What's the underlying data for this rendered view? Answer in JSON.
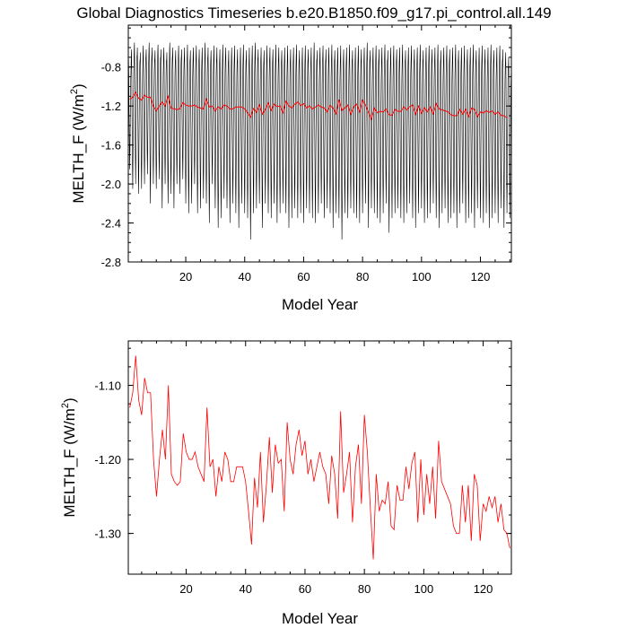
{
  "title": "Global Diagnostics Timeseries b.e20.B1850.f09_g17.pi_control.all.149",
  "chart_data": [
    {
      "type": "line",
      "xlabel": "Model Year",
      "ylabel_main": "MELTH_F (W/m",
      "ylabel_sup": "2",
      "ylabel_close": ")",
      "xlim": [
        0.5,
        130.5
      ],
      "ylim": [
        -2.8,
        -0.37
      ],
      "xticks": [
        20,
        40,
        60,
        80,
        100,
        120
      ],
      "xticklabels": [
        "20",
        "40",
        "60",
        "80",
        "100",
        "120"
      ],
      "yticks": [
        -2.8,
        -2.4,
        -2.0,
        -1.6,
        -1.2,
        -0.8
      ],
      "yticklabels": [
        "-2.8",
        "-2.4",
        "-2.0",
        "-1.6",
        "-1.2",
        "-0.8"
      ],
      "series": [
        {
          "kind": "monthly",
          "color": "#000000",
          "years": 130,
          "summer_min_by_year": [
            -1.85,
            -2.05,
            -2.0,
            -2.1,
            -2.05,
            -2.0,
            -1.9,
            -2.2,
            -2.0,
            -2.05,
            -1.95,
            -2.25,
            -2.0,
            -2.2,
            -2.1,
            -2.25,
            -2.0,
            -2.1,
            -1.95,
            -2.2,
            -2.3,
            -2.2,
            -2.0,
            -2.3,
            -2.25,
            -2.15,
            -2.2,
            -2.4,
            -2.0,
            -2.25,
            -2.45,
            -2.35,
            -2.15,
            -2.25,
            -2.4,
            -2.2,
            -2.3,
            -2.45,
            -2.2,
            -2.3,
            -2.35,
            -2.57,
            -2.3,
            -2.25,
            -2.2,
            -2.45,
            -2.2,
            -2.3,
            -2.35,
            -2.2,
            -2.4,
            -2.3,
            -2.2,
            -2.3,
            -2.45,
            -2.35,
            -2.25,
            -2.35,
            -2.3,
            -2.4,
            -2.25,
            -2.3,
            -2.35,
            -2.4,
            -2.3,
            -2.2,
            -2.35,
            -2.25,
            -2.3,
            -2.45,
            -2.3,
            -2.35,
            -2.57,
            -2.3,
            -2.35,
            -2.25,
            -2.3,
            -2.35,
            -2.4,
            -2.3,
            -2.2,
            -2.45,
            -2.25,
            -2.3,
            -2.35,
            -2.4,
            -2.3,
            -2.2,
            -2.5,
            -2.35,
            -2.3,
            -2.25,
            -2.35,
            -2.4,
            -2.3,
            -2.2,
            -2.35,
            -2.45,
            -2.3,
            -2.25,
            -2.4,
            -2.35,
            -2.3,
            -2.2,
            -2.35,
            -2.45,
            -2.3,
            -2.25,
            -2.4,
            -2.35,
            -2.3,
            -2.45,
            -2.3,
            -2.2,
            -2.4,
            -2.35,
            -2.3,
            -2.45,
            -2.25,
            -2.35,
            -2.4,
            -2.3,
            -2.45,
            -2.35,
            -2.3,
            -2.4,
            -2.25,
            -2.45,
            -2.3,
            -2.35
          ],
          "winter_max_by_year": [
            -0.72,
            -0.62,
            -0.55,
            -0.6,
            -0.65,
            -0.58,
            -0.62,
            -0.55,
            -0.6,
            -0.63,
            -0.57,
            -0.62,
            -0.6,
            -0.65,
            -0.55,
            -0.6,
            -0.63,
            -0.58,
            -0.62,
            -0.6,
            -0.57,
            -0.63,
            -0.6,
            -0.58,
            -0.62,
            -0.6,
            -0.55,
            -0.6,
            -0.63,
            -0.58,
            -0.6,
            -0.62,
            -0.57,
            -0.6,
            -0.63,
            -0.6,
            -0.58,
            -0.62,
            -0.6,
            -0.57,
            -0.63,
            -0.6,
            -0.58,
            -0.55,
            -0.62,
            -0.6,
            -0.63,
            -0.58,
            -0.6,
            -0.62,
            -0.57,
            -0.6,
            -0.63,
            -0.6,
            -0.58,
            -0.62,
            -0.6,
            -0.57,
            -0.63,
            -0.6,
            -0.58,
            -0.62,
            -0.6,
            -0.55,
            -0.63,
            -0.6,
            -0.58,
            -0.62,
            -0.6,
            -0.57,
            -0.63,
            -0.6,
            -0.58,
            -0.62,
            -0.6,
            -0.57,
            -0.63,
            -0.6,
            -0.58,
            -0.62,
            -0.6,
            -0.55,
            -0.63,
            -0.6,
            -0.58,
            -0.62,
            -0.6,
            -0.57,
            -0.63,
            -0.6,
            -0.58,
            -0.62,
            -0.6,
            -0.57,
            -0.63,
            -0.6,
            -0.58,
            -0.62,
            -0.6,
            -0.57,
            -0.63,
            -0.6,
            -0.58,
            -0.62,
            -0.6,
            -0.57,
            -0.63,
            -0.6,
            -0.58,
            -0.62,
            -0.6,
            -0.57,
            -0.63,
            -0.6,
            -0.58,
            -0.62,
            -0.6,
            -0.57,
            -0.63,
            -0.6,
            -0.58,
            -0.62,
            -0.6,
            -0.57,
            -0.63,
            -0.6,
            -0.58,
            -0.62,
            -0.65,
            -0.7
          ]
        },
        {
          "kind": "annual",
          "color": "#ff0000",
          "values_ref": "annual_values"
        }
      ]
    },
    {
      "type": "line",
      "xlabel": "Model Year",
      "ylabel_main": "MELTH_F (W/m",
      "ylabel_sup": "2",
      "ylabel_close": ")",
      "xlim": [
        0.5,
        129.5
      ],
      "ylim": [
        -1.355,
        -1.04
      ],
      "xticks": [
        20,
        40,
        60,
        80,
        100,
        120
      ],
      "xticklabels": [
        "20",
        "40",
        "60",
        "80",
        "100",
        "120"
      ],
      "yticks": [
        -1.3,
        -1.2,
        -1.1
      ],
      "yticklabels": [
        "-1.30",
        "-1.20",
        "-1.10"
      ],
      "series": [
        {
          "kind": "annual",
          "color": "#ff0000",
          "values_ref": "annual_values"
        }
      ]
    }
  ],
  "annual_values": [
    -1.13,
    -1.11,
    -1.06,
    -1.12,
    -1.14,
    -1.09,
    -1.11,
    -1.11,
    -1.2,
    -1.25,
    -1.2,
    -1.16,
    -1.2,
    -1.1,
    -1.22,
    -1.23,
    -1.235,
    -1.23,
    -1.165,
    -1.19,
    -1.2,
    -1.2,
    -1.19,
    -1.21,
    -1.22,
    -1.23,
    -1.13,
    -1.21,
    -1.2,
    -1.25,
    -1.21,
    -1.23,
    -1.19,
    -1.2,
    -1.23,
    -1.23,
    -1.21,
    -1.21,
    -1.21,
    -1.23,
    -1.27,
    -1.315,
    -1.225,
    -1.265,
    -1.19,
    -1.285,
    -1.235,
    -1.17,
    -1.245,
    -1.18,
    -1.205,
    -1.2,
    -1.27,
    -1.15,
    -1.2,
    -1.22,
    -1.18,
    -1.16,
    -1.195,
    -1.175,
    -1.22,
    -1.2,
    -1.23,
    -1.21,
    -1.19,
    -1.21,
    -1.22,
    -1.26,
    -1.195,
    -1.22,
    -1.28,
    -1.135,
    -1.245,
    -1.22,
    -1.19,
    -1.285,
    -1.21,
    -1.18,
    -1.26,
    -1.14,
    -1.19,
    -1.265,
    -1.335,
    -1.22,
    -1.27,
    -1.255,
    -1.26,
    -1.23,
    -1.29,
    -1.295,
    -1.235,
    -1.255,
    -1.255,
    -1.21,
    -1.24,
    -1.205,
    -1.19,
    -1.285,
    -1.2,
    -1.275,
    -1.22,
    -1.26,
    -1.21,
    -1.28,
    -1.175,
    -1.23,
    -1.24,
    -1.25,
    -1.26,
    -1.29,
    -1.3,
    -1.3,
    -1.235,
    -1.285,
    -1.235,
    -1.31,
    -1.22,
    -1.235,
    -1.31,
    -1.26,
    -1.27,
    -1.25,
    -1.265,
    -1.25,
    -1.285,
    -1.26,
    -1.295,
    -1.3,
    -1.32
  ]
}
